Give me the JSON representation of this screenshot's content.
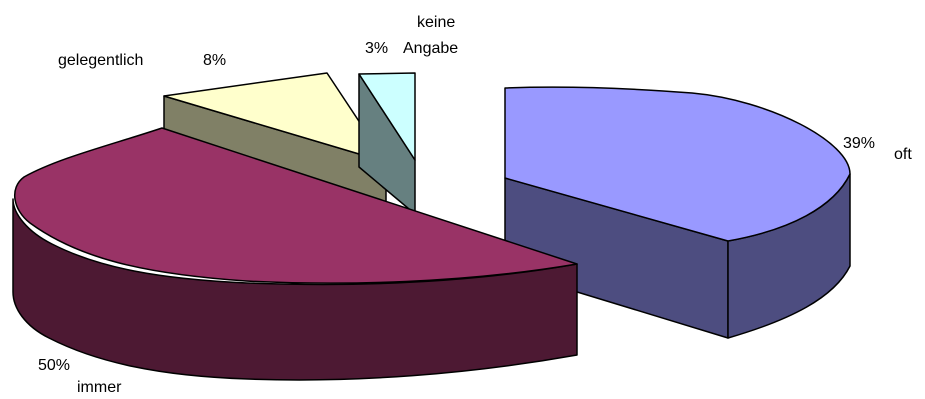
{
  "chart_data": {
    "type": "pie",
    "title": "",
    "slices": [
      {
        "category": "oft",
        "value": 39,
        "value_label": "39%",
        "top_color": "#9999ff",
        "side_color": "#4d4d80"
      },
      {
        "category": "immer",
        "value": 50,
        "value_label": "50%",
        "top_color": "#993366",
        "side_color": "#4d1933"
      },
      {
        "category": "gelegentlich",
        "value": 8,
        "value_label": "8%",
        "top_color": "#ffffcc",
        "side_color": "#808066"
      },
      {
        "category": "keine Angabe",
        "value": 3,
        "value_label": "3%",
        "top_color": "#ccffff",
        "side_color": "#668080"
      }
    ],
    "legend": "none",
    "pie_style": "3d-exploded"
  }
}
